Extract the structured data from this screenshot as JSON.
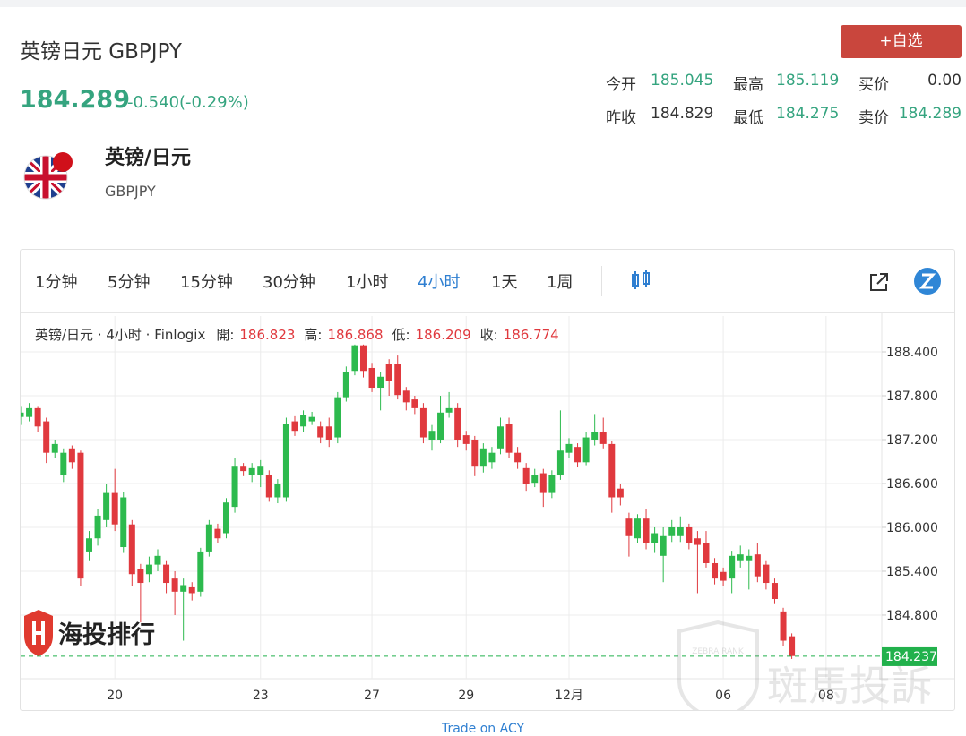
{
  "header": {
    "title": "英镑日元 GBPJPY",
    "price": "184.289",
    "change": "-0.540(-0.29%)",
    "button": "+自选",
    "stats": [
      {
        "label": "今开",
        "value": "185.045",
        "color": "#35a47f"
      },
      {
        "label": "最高",
        "value": "185.119",
        "color": "#35a47f"
      },
      {
        "label": "买价",
        "value": "0.00",
        "color": "#333333"
      },
      {
        "label": "昨收",
        "value": "184.829",
        "color": "#333333"
      },
      {
        "label": "最低",
        "value": "184.275",
        "color": "#35a47f"
      },
      {
        "label": "卖价",
        "value": "184.289",
        "color": "#35a47f"
      }
    ]
  },
  "instrument": {
    "name": "英镑/日元",
    "code": "GBPJPY"
  },
  "toolbar": {
    "tabs": [
      {
        "label": "1分钟",
        "active": false
      },
      {
        "label": "5分钟",
        "active": false
      },
      {
        "label": "15分钟",
        "active": false
      },
      {
        "label": "30分钟",
        "active": false
      },
      {
        "label": "1小时",
        "active": false
      },
      {
        "label": "4小时",
        "active": true
      },
      {
        "label": "1天",
        "active": false
      },
      {
        "label": "1周",
        "active": false
      }
    ]
  },
  "chart_data": {
    "type": "candlestick",
    "legend": "英镑/日元 · 4小时 · Finlogix",
    "ohlc_labels": [
      {
        "label": "開:",
        "value": "186.823"
      },
      {
        "label": "高:",
        "value": "186.868"
      },
      {
        "label": "低:",
        "value": "186.209"
      },
      {
        "label": "收:",
        "value": "186.774"
      }
    ],
    "up_color": "#2dba4e",
    "down_color": "#e0393e",
    "open": [
      187.51,
      187.51,
      187.63,
      187.45,
      187.02,
      186.71,
      187.08,
      187.02,
      185.67,
      185.85,
      186.1,
      186.47,
      185.73,
      186.04,
      185.43,
      185.36,
      185.49,
      185.49,
      185.3,
      185.12,
      185.18,
      185.12,
      185.67,
      185.98,
      185.92,
      186.28,
      186.83,
      186.71,
      186.71,
      186.71,
      186.41,
      186.41,
      187.45,
      187.38,
      187.45,
      187.38,
      187.38,
      187.23,
      187.78,
      188.14,
      188.49,
      188.18,
      187.91,
      188.24,
      188.24,
      187.87,
      187.75,
      187.63,
      187.2,
      187.2,
      187.57,
      187.63,
      187.26,
      187.2,
      186.83,
      186.89,
      187.08,
      187.42,
      187.02,
      186.81,
      186.61,
      186.74,
      186.47,
      186.71,
      187.02,
      187.1,
      186.89,
      187.2,
      187.3,
      187.14,
      186.53,
      186.12,
      185.85,
      186.12,
      185.79,
      185.61,
      185.88,
      185.88,
      186.0,
      185.85,
      185.79,
      185.51,
      185.39,
      185.3,
      185.55,
      185.55,
      185.63,
      185.49,
      185.24,
      184.85,
      184.51
    ],
    "high": [
      187.66,
      187.7,
      187.66,
      187.5,
      187.2,
      187.08,
      187.12,
      187.05,
      185.95,
      186.25,
      186.6,
      186.8,
      186.48,
      186.1,
      185.5,
      185.6,
      185.7,
      185.55,
      185.4,
      185.3,
      185.25,
      185.72,
      186.1,
      186.05,
      186.4,
      186.95,
      186.88,
      186.88,
      186.92,
      186.78,
      186.66,
      187.5,
      187.52,
      187.6,
      187.58,
      187.45,
      187.5,
      187.85,
      188.2,
      188.5,
      188.5,
      188.25,
      188.12,
      188.3,
      188.35,
      187.92,
      187.8,
      187.7,
      187.4,
      187.8,
      187.85,
      187.7,
      187.32,
      187.25,
      187.15,
      187.1,
      187.5,
      187.5,
      187.1,
      186.88,
      186.8,
      186.8,
      186.78,
      187.6,
      187.22,
      187.15,
      187.3,
      187.55,
      187.5,
      187.18,
      186.6,
      186.2,
      186.18,
      186.25,
      186.0,
      186.0,
      186.1,
      186.15,
      186.05,
      185.95,
      185.95,
      185.58,
      185.45,
      185.68,
      185.75,
      185.7,
      185.78,
      185.55,
      185.3,
      184.9,
      184.55
    ],
    "low": [
      187.4,
      187.45,
      187.3,
      186.88,
      186.95,
      186.62,
      186.8,
      185.2,
      185.55,
      185.75,
      186.0,
      185.95,
      185.65,
      185.2,
      184.7,
      185.25,
      185.4,
      185.1,
      184.8,
      184.45,
      185.0,
      185.05,
      185.6,
      185.78,
      185.85,
      186.2,
      186.7,
      186.62,
      186.55,
      186.35,
      186.33,
      186.35,
      187.25,
      187.3,
      187.4,
      187.15,
      187.1,
      187.15,
      187.72,
      188.08,
      188.05,
      187.85,
      187.6,
      187.8,
      187.75,
      187.6,
      187.55,
      187.15,
      187.05,
      187.15,
      187.5,
      187.1,
      187.05,
      186.7,
      186.75,
      186.8,
      187.0,
      186.95,
      186.8,
      186.5,
      186.55,
      186.28,
      186.4,
      186.65,
      186.95,
      186.82,
      186.85,
      187.12,
      187.08,
      186.2,
      186.3,
      185.6,
      185.78,
      185.7,
      185.65,
      185.25,
      185.8,
      185.8,
      185.7,
      185.1,
      185.45,
      185.22,
      185.2,
      185.1,
      185.45,
      185.15,
      185.25,
      185.15,
      184.95,
      184.38,
      184.2
    ],
    "close": [
      187.57,
      187.63,
      187.38,
      187.02,
      187.14,
      187.02,
      186.89,
      185.3,
      185.85,
      186.16,
      186.47,
      186.04,
      186.41,
      185.36,
      185.24,
      185.49,
      185.61,
      185.24,
      185.12,
      185.21,
      185.1,
      185.67,
      186.04,
      185.85,
      186.34,
      186.83,
      186.77,
      186.81,
      186.83,
      186.41,
      186.59,
      187.41,
      187.32,
      187.54,
      187.51,
      187.23,
      187.2,
      187.78,
      188.12,
      188.49,
      188.14,
      187.91,
      188.06,
      188.0,
      187.81,
      187.71,
      187.63,
      187.23,
      187.32,
      187.57,
      187.63,
      187.2,
      187.14,
      186.83,
      187.08,
      187.02,
      187.38,
      187.02,
      186.89,
      186.59,
      186.71,
      186.47,
      186.71,
      187.05,
      187.14,
      186.89,
      187.23,
      187.3,
      187.14,
      186.41,
      186.41,
      185.88,
      186.12,
      185.79,
      185.92,
      185.88,
      186.0,
      186.0,
      185.79,
      185.76,
      185.51,
      185.3,
      185.27,
      185.61,
      185.63,
      185.61,
      185.33,
      185.24,
      185.02,
      184.45,
      184.24
    ],
    "xlim": [
      0,
      100.5
    ],
    "xticks": [
      {
        "value": 11,
        "label": "20"
      },
      {
        "value": 28,
        "label": "23"
      },
      {
        "value": 41,
        "label": "27"
      },
      {
        "value": 52,
        "label": "29"
      },
      {
        "value": 64,
        "label": "12月"
      },
      {
        "value": 82,
        "label": "06"
      },
      {
        "value": 94,
        "label": "08"
      }
    ],
    "ylim": [
      183.93,
      188.89
    ],
    "yticks": [
      {
        "value": 184.8,
        "label": "184.800"
      },
      {
        "value": 185.4,
        "label": "185.400"
      },
      {
        "value": 186.0,
        "label": "186.000"
      },
      {
        "value": 186.6,
        "label": "186.600"
      },
      {
        "value": 187.2,
        "label": "187.200"
      },
      {
        "value": 187.8,
        "label": "187.800"
      },
      {
        "value": 188.4,
        "label": "188.400"
      }
    ],
    "grid": true,
    "last_price": 184.237,
    "last_price_color": "#22b14c"
  },
  "watermarks": {
    "left": "海投排行",
    "right": "斑馬投訴",
    "badge": "ZEBRA RANK"
  },
  "footer": "Trade on ACY"
}
